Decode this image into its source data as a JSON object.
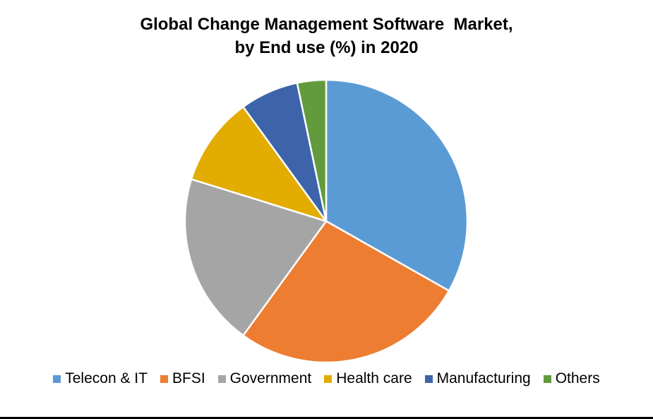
{
  "chart_data": {
    "type": "pie",
    "title": "Global Change Management Software  Market, by End use (%) in 2020",
    "title_lines": [
      "Global Change Management Software  Market,",
      "by End use (%) in 2020"
    ],
    "categories": [
      "Telecon & IT",
      "BFSI",
      "Government",
      "Health care",
      "Manufacturing",
      "Others"
    ],
    "values": [
      33.2,
      26.8,
      19.8,
      10.2,
      6.7,
      3.3
    ],
    "colors": [
      "#5B9BD5",
      "#ED7D31",
      "#A5A5A5",
      "#E2AC00",
      "#3D64AA",
      "#639A3E"
    ],
    "start_angle_deg": 0,
    "direction": "clockwise",
    "legend_position": "bottom",
    "unit": "%"
  },
  "legend": {
    "items": [
      {
        "label": "Telecon & IT",
        "color": "#5B9BD5"
      },
      {
        "label": "BFSI",
        "color": "#ED7D31"
      },
      {
        "label": "Government",
        "color": "#A5A5A5"
      },
      {
        "label": "Health care",
        "color": "#E2AC00"
      },
      {
        "label": "Manufacturing",
        "color": "#3D64AA"
      },
      {
        "label": "Others",
        "color": "#639A3E"
      }
    ]
  }
}
